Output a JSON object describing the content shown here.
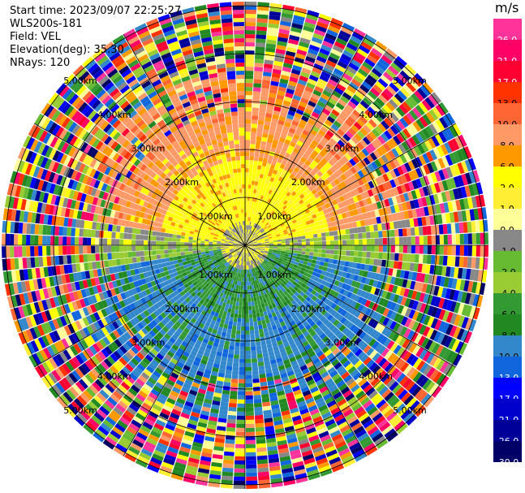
{
  "header": {
    "start_time": "Start time: 2023/09/07 22:25:27",
    "instrument": "WLS200s-181",
    "field": "Field: VEL",
    "elevation": "Elevation(deg): 35.30",
    "nrays": "NRays: 120"
  },
  "colorbar": {
    "unit": "m/s",
    "colors": [
      "#ff3399",
      "#ff0066",
      "#ff0033",
      "#ff3300",
      "#ff6633",
      "#ff9966",
      "#ff9900",
      "#ffff00",
      "#ffee33",
      "#ffff99",
      "#888888",
      "#66bb33",
      "#99cc33",
      "#339933",
      "#228822",
      "#3388cc",
      "#1166dd",
      "#0000ff",
      "#0000cc",
      "#000099",
      "#000066"
    ],
    "tick_labels": [
      "26.0",
      "21.0",
      "17.0",
      "13.0",
      "10.0",
      "8.0",
      "6.0",
      "2.0",
      "1.0",
      "0.0",
      "-1.0",
      "-2.0",
      "-4.0",
      "-6.0",
      "-8.0",
      "-10.0",
      "-13.0",
      "-17.0",
      "-21.0",
      "-26.0",
      "-30.0"
    ]
  },
  "chart_data": {
    "type": "heatmap",
    "subtype": "ppi-polar",
    "field": "VEL",
    "units": "m/s",
    "nrays": 120,
    "range_rings_km": [
      1.0,
      2.0,
      3.0,
      4.0,
      5.0
    ],
    "ring_labels": [
      "1.00km",
      "2.00km",
      "3.00km",
      "4.00km",
      "5.00km"
    ],
    "color_scale": [
      -30,
      -26,
      -21,
      -17,
      -13,
      -10,
      -8,
      -6,
      -4,
      -2,
      -1,
      0,
      1,
      2,
      6,
      8,
      10,
      13,
      17,
      21,
      26
    ],
    "pattern": {
      "north_sector_velocity": 10,
      "south_sector_velocity": -8,
      "near_range_velocity": 0
    }
  }
}
